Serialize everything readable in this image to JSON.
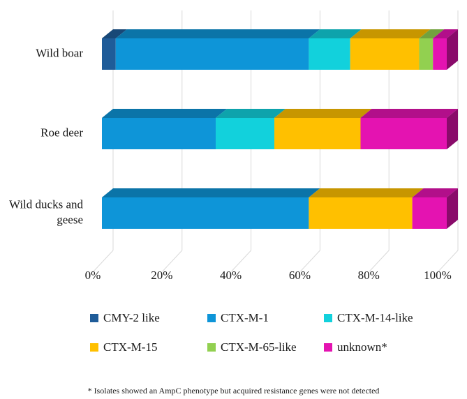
{
  "chart_data": {
    "type": "bar",
    "orientation": "horizontal",
    "stacked": true,
    "percent": true,
    "style": "3d",
    "categories": [
      "Wild boar",
      "Roe deer",
      "Wild ducks and geese"
    ],
    "category_lines": [
      [
        "Wild boar"
      ],
      [
        "Roe deer"
      ],
      [
        "Wild ducks and",
        "geese"
      ]
    ],
    "series": [
      {
        "name": "CMY-2 like",
        "color": "#1F5C99",
        "values": [
          4,
          0,
          0
        ]
      },
      {
        "name": "CTX-M-1",
        "color": "#0E95D8",
        "values": [
          56,
          33,
          60
        ]
      },
      {
        "name": "CTX-M-14-like",
        "color": "#12D1DC",
        "values": [
          12,
          17,
          0
        ]
      },
      {
        "name": "CTX-M-15",
        "color": "#FFC000",
        "values": [
          20,
          25,
          30
        ]
      },
      {
        "name": "CTX-M-65-like",
        "color": "#92D050",
        "values": [
          4,
          0,
          0
        ]
      },
      {
        "name": "unknown*",
        "color": "#E413B1",
        "values": [
          4,
          25,
          10
        ]
      }
    ],
    "x_ticks": [
      "0%",
      "20%",
      "40%",
      "60%",
      "80%",
      "100%"
    ],
    "xlim": [
      0,
      100
    ],
    "grid": true,
    "legend_position": "bottom"
  },
  "footnote": "* Isolates showed an AmpC phenotype but acquired resistance genes were not detected"
}
